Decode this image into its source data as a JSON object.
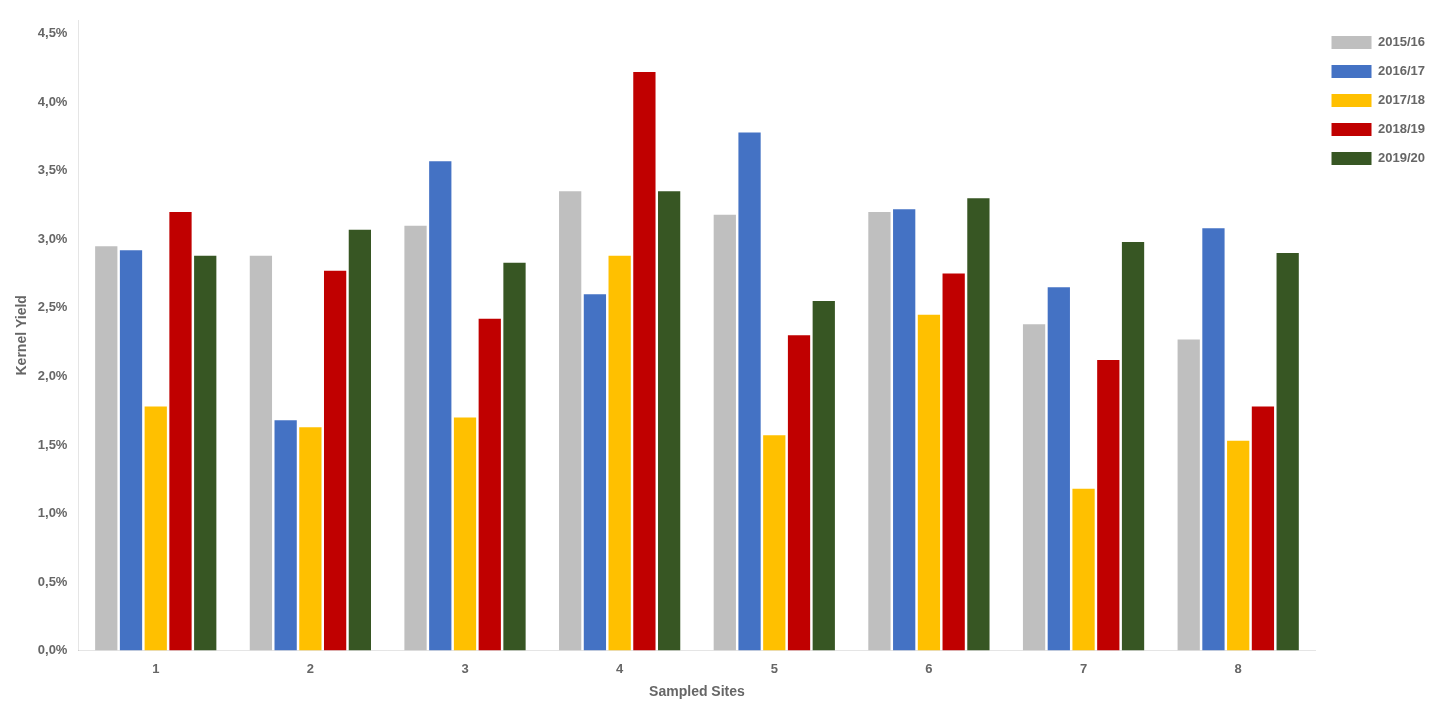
{
  "chart_data": {
    "type": "bar",
    "xlabel": "Sampled Sites",
    "ylabel": "Kernel Yield",
    "categories": [
      "1",
      "2",
      "3",
      "4",
      "5",
      "6",
      "7",
      "8"
    ],
    "series": [
      {
        "name": "2015/16",
        "color": "#BFBFBF",
        "values": [
          0.0295,
          0.0288,
          0.031,
          0.0335,
          0.0318,
          0.032,
          0.0238,
          0.0227
        ]
      },
      {
        "name": "2016/17",
        "color": "#4472C4",
        "values": [
          0.0292,
          0.0168,
          0.0357,
          0.026,
          0.0378,
          0.0322,
          0.0265,
          0.0308
        ]
      },
      {
        "name": "2017/18",
        "color": "#FFC000",
        "values": [
          0.0178,
          0.0163,
          0.017,
          0.0288,
          0.0157,
          0.0245,
          0.0118,
          0.0153
        ]
      },
      {
        "name": "2018/19",
        "color": "#C00000",
        "values": [
          0.032,
          0.0277,
          0.0242,
          0.0422,
          0.023,
          0.0275,
          0.0212,
          0.0178
        ]
      },
      {
        "name": "2019/20",
        "color": "#375623",
        "values": [
          0.0288,
          0.0307,
          0.0283,
          0.0335,
          0.0255,
          0.033,
          0.0298,
          0.029
        ]
      }
    ],
    "ylim": [
      0,
      0.046
    ],
    "yticks": [
      {
        "value": 0.0,
        "label": "0,0%"
      },
      {
        "value": 0.005,
        "label": "0,5%"
      },
      {
        "value": 0.01,
        "label": "1,0%"
      },
      {
        "value": 0.015,
        "label": "1,5%"
      },
      {
        "value": 0.02,
        "label": "2,0%"
      },
      {
        "value": 0.025,
        "label": "2,5%"
      },
      {
        "value": 0.03,
        "label": "3,0%"
      },
      {
        "value": 0.035,
        "label": "3,5%"
      },
      {
        "value": 0.04,
        "label": "4,0%"
      },
      {
        "value": 0.045,
        "label": "4,5%"
      }
    ],
    "grid": false,
    "legend": "right"
  }
}
